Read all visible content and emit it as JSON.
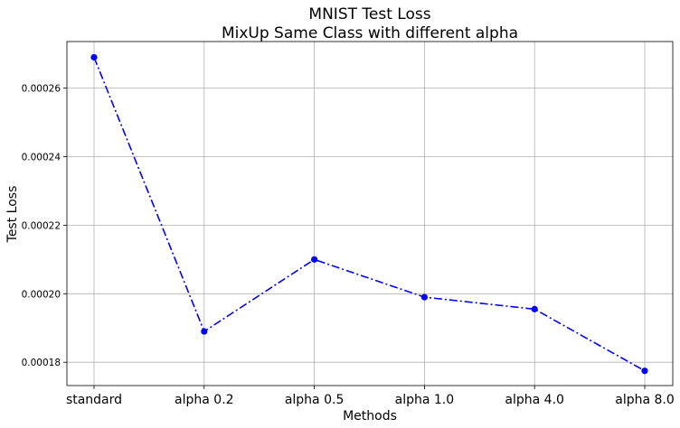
{
  "chart_data": {
    "type": "line",
    "title": "MNIST Test Loss",
    "subtitle": "MixUp Same Class with different alpha",
    "xlabel": "Methods",
    "ylabel": "Test Loss",
    "categories": [
      "standard",
      "alpha 0.2",
      "alpha 0.5",
      "alpha 1.0",
      "alpha 4.0",
      "alpha 8.0"
    ],
    "series": [
      {
        "values": [
          0.000269,
          0.000189,
          0.00021,
          0.000199,
          0.0001955,
          0.0001775
        ],
        "color": "#0000ff",
        "line_style": "dash-dot",
        "marker": "circle"
      }
    ],
    "yticks": [
      0.00018,
      0.0002,
      0.00022,
      0.00024,
      0.00026
    ],
    "ytick_labels": [
      "0.00018",
      "0.00020",
      "0.00022",
      "0.00024",
      "0.00026"
    ],
    "ylim": [
      0.0001732,
      0.0002736
    ],
    "grid": true,
    "legend": "none"
  }
}
